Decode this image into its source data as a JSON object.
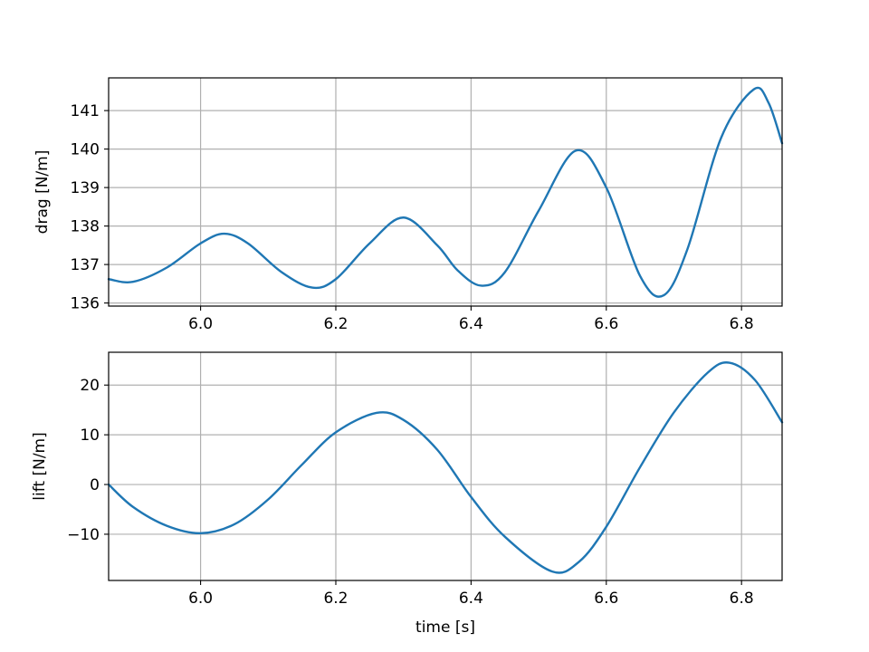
{
  "chart_data": [
    {
      "type": "line",
      "title": "",
      "xlabel": "",
      "ylabel": "drag [N/m]",
      "xlim": [
        5.864,
        6.86
      ],
      "ylim": [
        135.92,
        141.85
      ],
      "xticks": [
        6.0,
        6.2,
        6.4,
        6.6,
        6.8
      ],
      "xtick_labels": [
        "6.0",
        "6.2",
        "6.4",
        "6.6",
        "6.8"
      ],
      "yticks": [
        136,
        137,
        138,
        139,
        140,
        141
      ],
      "ytick_labels": [
        "136",
        "137",
        "138",
        "139",
        "140",
        "141"
      ],
      "grid": true,
      "color": "#1f77b4",
      "series": [
        {
          "x": [
            5.864,
            5.9,
            5.95,
            6.0,
            6.035,
            6.07,
            6.12,
            6.165,
            6.2,
            6.25,
            6.3,
            6.35,
            6.38,
            6.415,
            6.45,
            6.5,
            6.555,
            6.6,
            6.65,
            6.685,
            6.72,
            6.77,
            6.818,
            6.84,
            6.86
          ],
          "y": [
            136.62,
            136.55,
            136.92,
            137.55,
            137.8,
            137.55,
            136.8,
            136.4,
            136.62,
            137.55,
            138.22,
            137.5,
            136.85,
            136.45,
            136.8,
            138.4,
            139.96,
            139.0,
            136.7,
            136.2,
            137.4,
            140.3,
            141.55,
            141.2,
            140.15
          ]
        }
      ]
    },
    {
      "type": "line",
      "title": "",
      "xlabel": "time [s]",
      "ylabel": "lift [N/m]",
      "xlim": [
        5.864,
        6.86
      ],
      "ylim": [
        -19.3,
        26.6
      ],
      "xticks": [
        6.0,
        6.2,
        6.4,
        6.6,
        6.8
      ],
      "xtick_labels": [
        "6.0",
        "6.2",
        "6.4",
        "6.6",
        "6.8"
      ],
      "yticks": [
        -10,
        0,
        10,
        20
      ],
      "ytick_labels": [
        "−10",
        "0",
        "10",
        "20"
      ],
      "grid": true,
      "color": "#1f77b4",
      "series": [
        {
          "x": [
            5.864,
            5.9,
            5.95,
            6.0,
            6.05,
            6.1,
            6.15,
            6.2,
            6.26,
            6.3,
            6.35,
            6.4,
            6.45,
            6.52,
            6.56,
            6.6,
            6.65,
            6.7,
            6.75,
            6.782,
            6.82,
            6.86
          ],
          "y": [
            0.0,
            -4.5,
            -8.3,
            -9.8,
            -8.0,
            -3.0,
            4.0,
            10.5,
            14.4,
            13.0,
            7.0,
            -2.5,
            -10.5,
            -17.5,
            -15.5,
            -8.5,
            3.5,
            14.5,
            22.5,
            24.5,
            21.0,
            12.5
          ]
        }
      ]
    }
  ]
}
